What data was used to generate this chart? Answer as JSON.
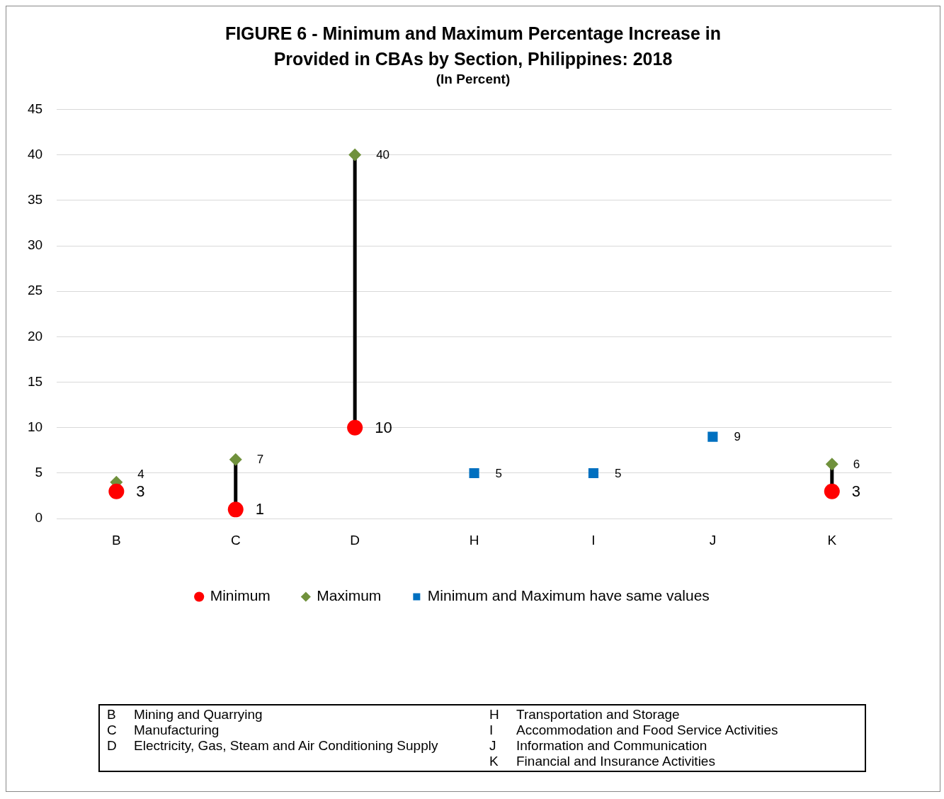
{
  "chart_data": {
    "type": "scatter",
    "title": "FIGURE 6 - Minimum and Maximum Percentage Increase in Provided in CBAs by Section, Philippines:  2018",
    "subtitle": "(In Percent)",
    "categories": [
      "B",
      "C",
      "D",
      "H",
      "I",
      "J",
      "K"
    ],
    "series": [
      {
        "name": "Minimum",
        "color": "#ff0000",
        "marker": "circle",
        "values": [
          3,
          1,
          10,
          null,
          null,
          null,
          3
        ],
        "value_labels": [
          "3",
          "1",
          "10",
          null,
          null,
          null,
          "3"
        ]
      },
      {
        "name": "Maximum",
        "color": "#70913c",
        "marker": "diamond",
        "values": [
          4,
          6.5,
          40,
          null,
          null,
          null,
          6
        ],
        "value_labels": [
          "4",
          "7",
          "40",
          null,
          null,
          null,
          "6"
        ]
      },
      {
        "name": "Minimum and Maximum have same values",
        "color": "#0070c0",
        "marker": "square",
        "values": [
          null,
          null,
          null,
          5,
          5,
          9,
          null
        ],
        "value_labels": [
          null,
          null,
          null,
          "5",
          "5",
          "9",
          null
        ]
      }
    ],
    "ylim": [
      0,
      45
    ],
    "yticks": [
      0,
      5,
      10,
      15,
      20,
      25,
      30,
      35,
      40,
      45
    ],
    "grid": "y",
    "legend": "bottom",
    "annotations": [
      "B Mining and Quarrying",
      "C Manufacturing",
      "D Electricity, Gas, Steam and Air Conditioning Supply",
      "H Transportation and Storage",
      "I Accommodation and Food Service Activities",
      "J Information and Communication",
      "K Financial and Insurance Activities"
    ]
  }
}
